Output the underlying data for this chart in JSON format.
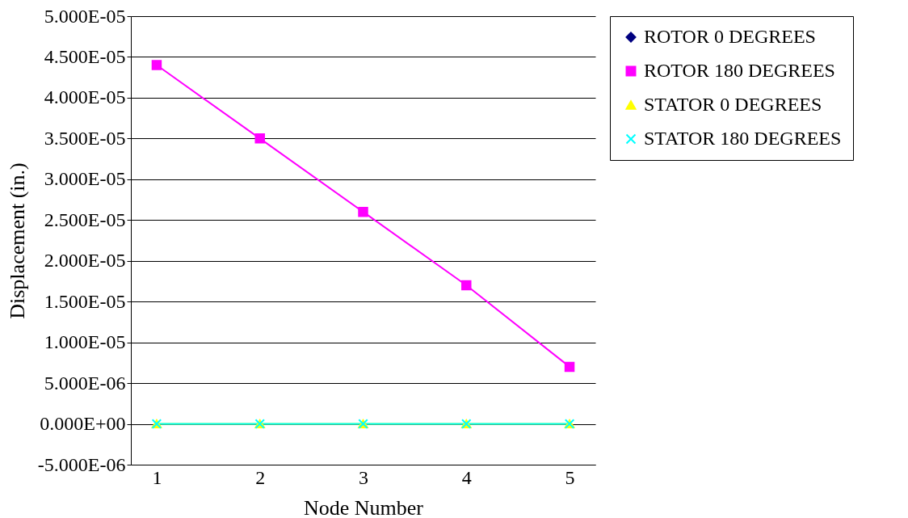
{
  "chart_data": {
    "type": "line",
    "xlabel": "Node Number",
    "ylabel": "Displacement (in.)",
    "categories": [
      "1",
      "2",
      "3",
      "4",
      "5"
    ],
    "series": [
      {
        "name": "ROTOR 0 DEGREES",
        "color": "#000080",
        "marker": "diamond",
        "values": [
          null,
          null,
          null,
          null,
          null
        ]
      },
      {
        "name": "ROTOR 180 DEGREES",
        "color": "#ff00ff",
        "marker": "square",
        "values": [
          4.4e-05,
          3.5e-05,
          2.6e-05,
          1.7e-05,
          7e-06
        ]
      },
      {
        "name": "STATOR 0 DEGREES",
        "color": "#ffff00",
        "marker": "triangle",
        "values": [
          0,
          0,
          0,
          0,
          0
        ]
      },
      {
        "name": "STATOR 180 DEGREES",
        "color": "#00ffff",
        "marker": "cross",
        "values": [
          0,
          0,
          0,
          0,
          0
        ]
      }
    ],
    "ylim": [
      -5e-06,
      5e-05
    ],
    "yticks": [
      {
        "value": -5e-06,
        "label": "-5.000E-06"
      },
      {
        "value": 0,
        "label": "0.000E+00"
      },
      {
        "value": 5e-06,
        "label": "5.000E-06"
      },
      {
        "value": 1e-05,
        "label": "1.000E-05"
      },
      {
        "value": 1.5e-05,
        "label": "1.500E-05"
      },
      {
        "value": 2e-05,
        "label": "2.000E-05"
      },
      {
        "value": 2.5e-05,
        "label": "2.500E-05"
      },
      {
        "value": 3e-05,
        "label": "3.000E-05"
      },
      {
        "value": 3.5e-05,
        "label": "3.500E-05"
      },
      {
        "value": 4e-05,
        "label": "4.000E-05"
      },
      {
        "value": 4.5e-05,
        "label": "4.500E-05"
      },
      {
        "value": 5e-05,
        "label": "5.000E-05"
      }
    ],
    "grid": "y",
    "legend": "right",
    "line_style": "solid"
  }
}
